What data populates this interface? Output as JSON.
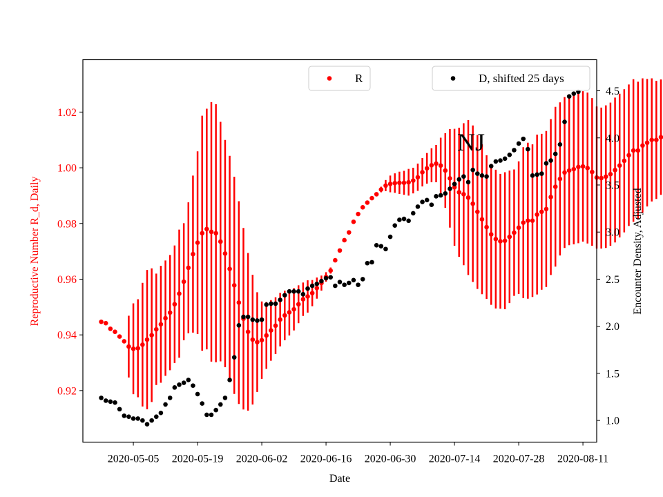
{
  "chart_data": {
    "type": "scatter",
    "title": "",
    "annotation": "NJ",
    "xlabel": "Date",
    "ylabel_left": "Reproductive Number R_d, Daily",
    "ylabel_right": "Encounter Density, Adjusted",
    "x_tick_labels": [
      "2020-05-05",
      "2020-05-19",
      "2020-06-02",
      "2020-06-16",
      "2020-06-30",
      "2020-07-14",
      "2020-07-28",
      "2020-08-11"
    ],
    "x_tick_dates": [
      "2020-05-05",
      "2020-05-19",
      "2020-06-02",
      "2020-06-16",
      "2020-06-30",
      "2020-07-14",
      "2020-07-28",
      "2020-08-11"
    ],
    "xlim": [
      "2020-04-24",
      "2020-08-14"
    ],
    "y_left_ticks": [
      "0.92",
      "0.94",
      "0.96",
      "0.98",
      "1.00",
      "1.02"
    ],
    "y_left_tick_values": [
      0.92,
      0.94,
      0.96,
      0.98,
      1.0,
      1.02
    ],
    "y_left_lim": [
      0.9015,
      1.0388
    ],
    "y_right_ticks": [
      "1.0",
      "1.5",
      "2.0",
      "2.5",
      "3.0",
      "3.5",
      "4.0",
      "4.5"
    ],
    "y_right_tick_values": [
      1.0,
      1.5,
      2.0,
      2.5,
      3.0,
      3.5,
      4.0,
      4.5
    ],
    "y_right_lim": [
      0.77,
      4.83
    ],
    "colors": {
      "R": "#ff0000",
      "D": "#000000",
      "left_axis": "#ff0000",
      "right_axis": "#000000"
    },
    "legend": {
      "R_label": "R",
      "D_label": "D, shifted 25 days",
      "R_placement": "top-center",
      "D_placement": "top-right"
    },
    "series": [
      {
        "name": "R",
        "axis": "left",
        "start_date": "2020-04-28",
        "step_days": 1,
        "values": [
          0.9447,
          0.9442,
          0.9422,
          0.9411,
          0.9394,
          0.9377,
          0.9358,
          0.935,
          0.9352,
          0.9365,
          0.9383,
          0.9399,
          0.942,
          0.9438,
          0.946,
          0.948,
          0.951,
          0.9548,
          0.9591,
          0.9641,
          0.969,
          0.9731,
          0.9765,
          0.978,
          0.977,
          0.9765,
          0.9735,
          0.9692,
          0.9637,
          0.9578,
          0.9516,
          0.9458,
          0.9411,
          0.9383,
          0.9374,
          0.9381,
          0.9398,
          0.9416,
          0.9433,
          0.9455,
          0.947,
          0.9481,
          0.9492,
          0.951,
          0.9528,
          0.9538,
          0.955,
          0.9568,
          0.9586,
          0.9608,
          0.9631,
          0.9668,
          0.9703,
          0.974,
          0.9768,
          0.9806,
          0.9834,
          0.9858,
          0.9875,
          0.9891,
          0.9905,
          0.9922,
          0.9936,
          0.9942,
          0.9945,
          0.9946,
          0.9946,
          0.9948,
          0.9954,
          0.9966,
          0.9984,
          0.9998,
          1.0009,
          1.0015,
          1.0008,
          0.999,
          0.9962,
          0.993,
          0.9912,
          0.9905,
          0.9893,
          0.9871,
          0.9842,
          0.9815,
          0.9787,
          0.9761,
          0.9744,
          0.9736,
          0.9738,
          0.9752,
          0.9767,
          0.9785,
          0.9803,
          0.981,
          0.981,
          0.9832,
          0.9842,
          0.9852,
          0.9895,
          0.9932,
          0.996,
          0.9983,
          0.999,
          0.9995,
          1.0003,
          1.0005,
          0.9999,
          0.9985,
          0.9965,
          0.9963,
          0.9968,
          0.9977,
          0.9992,
          1.0008,
          1.0025,
          1.0045,
          1.0062,
          1.0062,
          1.008,
          1.009,
          1.01,
          1.01,
          1.011,
          1.012
        ],
        "err_low": [
          0.9447,
          0.9442,
          0.9422,
          0.9411,
          0.9394,
          0.9377,
          0.9247,
          0.9187,
          0.9176,
          0.9143,
          0.9133,
          0.9159,
          0.922,
          0.9228,
          0.9253,
          0.9273,
          0.9299,
          0.9318,
          0.9381,
          0.9406,
          0.9408,
          0.9403,
          0.9343,
          0.9348,
          0.9304,
          0.9302,
          0.9305,
          0.9284,
          0.9231,
          0.9188,
          0.9152,
          0.9132,
          0.9128,
          0.915,
          0.9195,
          0.9242,
          0.9278,
          0.9307,
          0.9331,
          0.9359,
          0.9381,
          0.9398,
          0.9416,
          0.9442,
          0.9468,
          0.948,
          0.9503,
          0.953,
          0.9559,
          0.9591,
          0.962,
          0.9666,
          0.9705,
          0.9744,
          0.9772,
          0.9811,
          0.984,
          0.9866,
          0.9882,
          0.9898,
          0.9905,
          0.9912,
          0.9916,
          0.9912,
          0.991,
          0.9906,
          0.9903,
          0.99,
          0.9908,
          0.9917,
          0.9933,
          0.9943,
          0.9948,
          0.9948,
          0.9908,
          0.9856,
          0.9785,
          0.972,
          0.968,
          0.965,
          0.9615,
          0.959,
          0.9565,
          0.9546,
          0.9529,
          0.9508,
          0.9495,
          0.9494,
          0.9492,
          0.9514,
          0.954,
          0.9547,
          0.9532,
          0.953,
          0.9536,
          0.9545,
          0.9562,
          0.9572,
          0.9615,
          0.9645,
          0.9685,
          0.9712,
          0.9722,
          0.9725,
          0.9729,
          0.9735,
          0.9728,
          0.972,
          0.971,
          0.971,
          0.9712,
          0.972,
          0.9732,
          0.975,
          0.9768,
          0.9791,
          0.9806,
          0.9815,
          0.9839,
          0.9861,
          0.9879,
          0.9888,
          0.9903,
          0.9913
        ],
        "err_high": [
          0.9447,
          0.9442,
          0.9422,
          0.9411,
          0.9394,
          0.9377,
          0.9469,
          0.9513,
          0.9528,
          0.9587,
          0.9633,
          0.9639,
          0.962,
          0.9648,
          0.9667,
          0.9687,
          0.9721,
          0.9778,
          0.9801,
          0.9876,
          0.9972,
          1.0059,
          1.0187,
          1.0212,
          1.0236,
          1.0228,
          1.0165,
          1.01,
          1.0043,
          0.9968,
          0.988,
          0.9784,
          0.9694,
          0.9616,
          0.9553,
          0.952,
          0.9518,
          0.9525,
          0.9535,
          0.9551,
          0.9559,
          0.9564,
          0.9568,
          0.9578,
          0.9588,
          0.9596,
          0.9597,
          0.9606,
          0.9613,
          0.9625,
          0.9642,
          0.967,
          0.9701,
          0.9736,
          0.9764,
          0.9801,
          0.9828,
          0.985,
          0.9868,
          0.9884,
          0.9905,
          0.9932,
          0.9956,
          0.9972,
          0.998,
          0.9986,
          0.9989,
          0.9996,
          1.0,
          1.0015,
          1.0035,
          1.0053,
          1.007,
          1.0082,
          1.0108,
          1.0124,
          1.0139,
          1.014,
          1.0144,
          1.016,
          1.0171,
          1.0152,
          1.0118,
          1.0084,
          1.0045,
          1.0014,
          0.9993,
          0.9978,
          0.9984,
          0.999,
          0.9994,
          1.0023,
          1.0074,
          1.009,
          1.0084,
          1.0119,
          1.0122,
          1.0132,
          1.0175,
          1.0219,
          1.0235,
          1.0254,
          1.0258,
          1.0265,
          1.0277,
          1.0275,
          1.027,
          1.025,
          1.022,
          1.0216,
          1.0224,
          1.0234,
          1.0252,
          1.0266,
          1.0282,
          1.0299,
          1.0318,
          1.0309,
          1.0321,
          1.0319,
          1.0321,
          1.0312,
          1.0317,
          1.0327
        ]
      },
      {
        "name": "D, shifted 25 days",
        "axis": "right",
        "start_date": "2020-04-28",
        "step_days": 1,
        "values": [
          1.24,
          1.21,
          1.2,
          1.19,
          1.12,
          1.05,
          1.04,
          1.02,
          1.02,
          1.0,
          0.96,
          1.0,
          1.04,
          1.08,
          1.17,
          1.24,
          1.35,
          1.38,
          1.4,
          1.43,
          1.37,
          1.28,
          1.18,
          1.06,
          1.06,
          1.11,
          1.17,
          1.24,
          1.43,
          1.67,
          2.01,
          2.1,
          2.1,
          2.07,
          2.06,
          2.07,
          2.23,
          2.24,
          2.24,
          2.28,
          2.33,
          2.37,
          2.37,
          2.37,
          2.34,
          2.4,
          2.43,
          2.45,
          2.48,
          2.51,
          2.52,
          2.43,
          2.47,
          2.44,
          2.46,
          2.49,
          2.44,
          2.5,
          2.67,
          2.68,
          2.86,
          2.85,
          2.82,
          2.95,
          3.07,
          3.13,
          3.14,
          3.12,
          3.2,
          3.27,
          3.32,
          3.34,
          3.29,
          3.38,
          3.39,
          3.41,
          3.46,
          3.51,
          3.56,
          3.59,
          3.53,
          3.66,
          3.62,
          3.6,
          3.59,
          3.7,
          3.75,
          3.76,
          3.78,
          3.82,
          3.87,
          3.94,
          3.99,
          3.88,
          3.6,
          3.61,
          3.62,
          3.73,
          3.76,
          3.83,
          3.93,
          4.17,
          4.44,
          4.47,
          4.49
        ]
      }
    ]
  }
}
